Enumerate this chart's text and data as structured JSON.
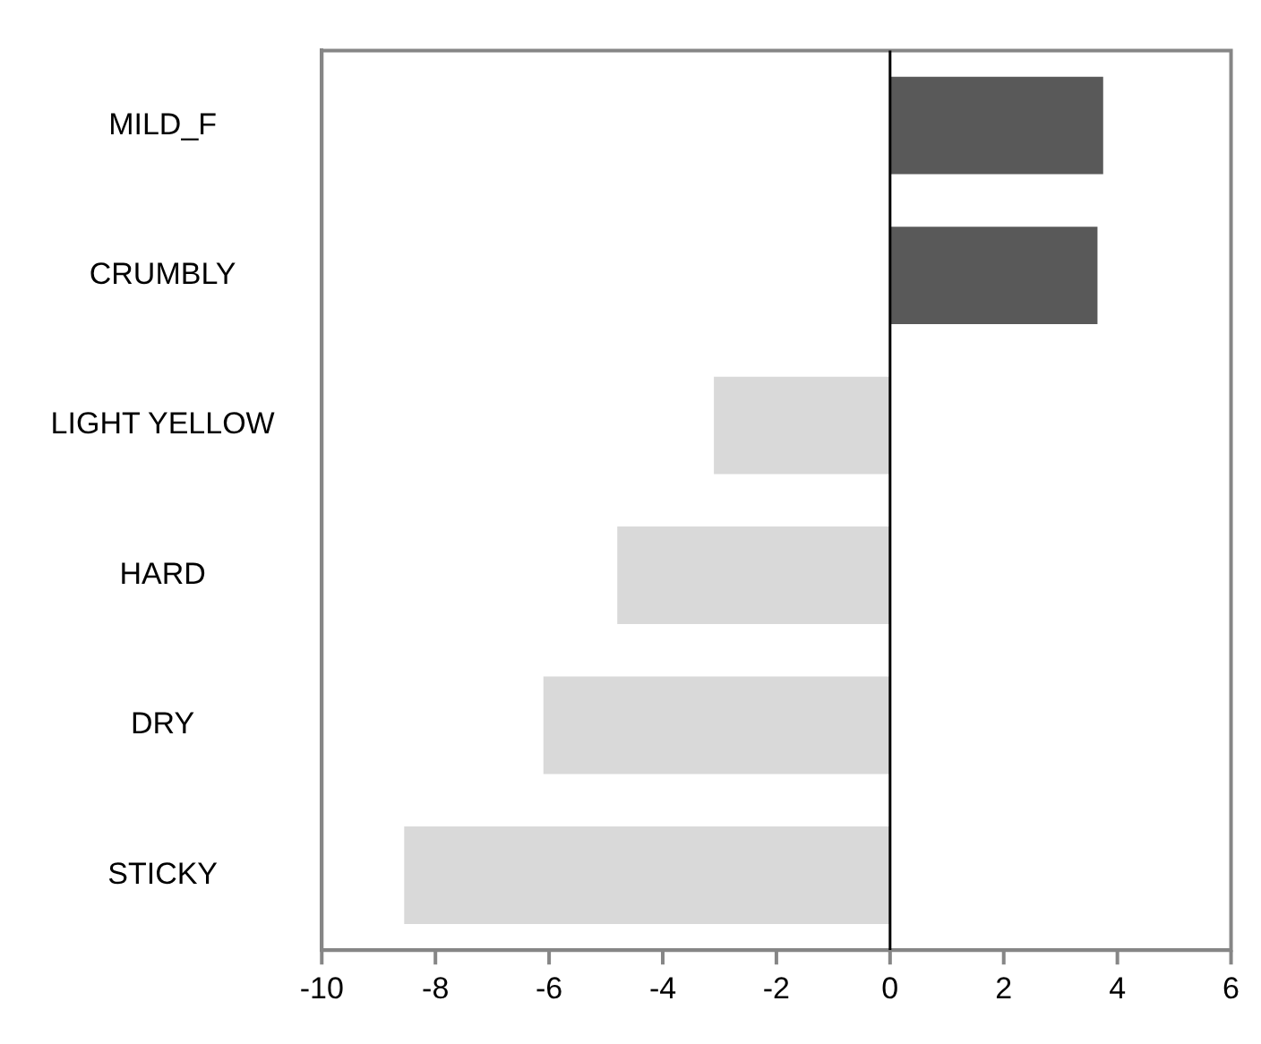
{
  "chart_data": {
    "type": "bar",
    "orientation": "horizontal",
    "categories": [
      "MILD_F",
      "CRUMBLY",
      "LIGHT YELLOW",
      "HARD",
      "DRY",
      "STICKY"
    ],
    "values": [
      3.75,
      3.65,
      -3.1,
      -4.8,
      -6.1,
      -8.55
    ],
    "colors": [
      "#595959",
      "#595959",
      "#d9d9d9",
      "#d9d9d9",
      "#d9d9d9",
      "#d9d9d9"
    ],
    "xlim": [
      -10,
      6
    ],
    "xticks": [
      -10,
      -8,
      -6,
      -4,
      -2,
      0,
      2,
      4,
      6
    ],
    "grid": false,
    "legend": false,
    "ref_lines": [
      {
        "axis": "x",
        "value": 0,
        "color": "#000000"
      }
    ]
  }
}
